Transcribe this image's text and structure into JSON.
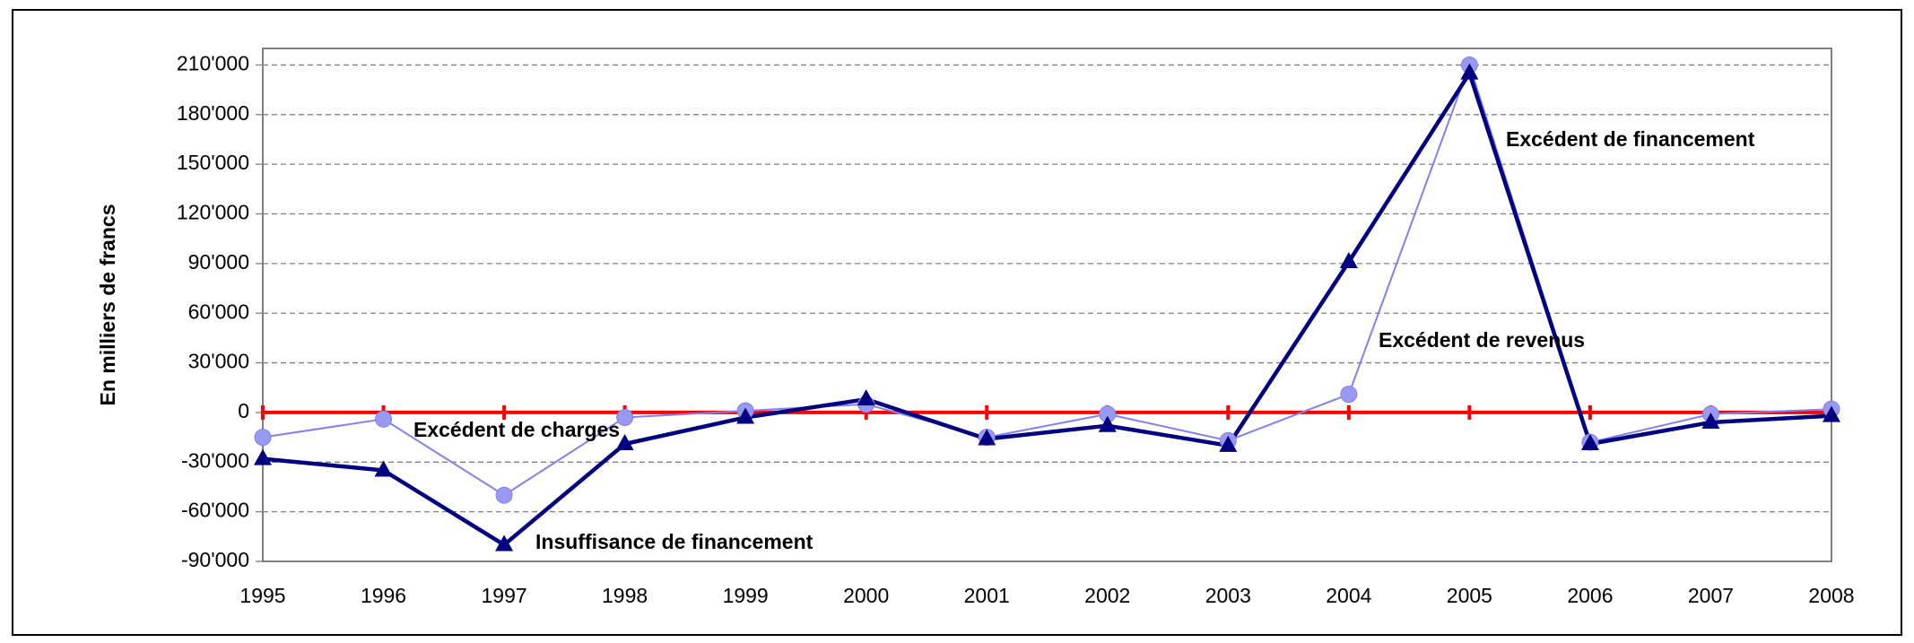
{
  "chart_data": {
    "type": "line",
    "y_label": "En  milliers  de francs",
    "categories": [
      "1995",
      "1996",
      "1997",
      "1998",
      "1999",
      "2000",
      "2001",
      "2002",
      "2003",
      "2004",
      "2005",
      "2006",
      "2007",
      "2008"
    ],
    "series": [
      {
        "color": "#8080ee",
        "marker": "circle",
        "values": [
          -15000,
          -4000,
          -50000,
          -3000,
          1000,
          5000,
          -15000,
          -1000,
          -17000,
          11000,
          210000,
          -18000,
          -1000,
          2000
        ]
      },
      {
        "color": "#000080",
        "marker": "triangle",
        "values": [
          -28000,
          -35000,
          -80000,
          -19000,
          -3000,
          8000,
          -16000,
          -8000,
          -20000,
          91000,
          205000,
          -19000,
          -6000,
          -2000
        ]
      }
    ],
    "ylim": [
      -90000,
      220000
    ],
    "yticks": [
      {
        "value": -90000,
        "label": "-90'000"
      },
      {
        "value": -60000,
        "label": "-60'000"
      },
      {
        "value": -30000,
        "label": "-30'000"
      },
      0,
      {
        "value": 30000,
        "label": "30'000"
      },
      {
        "value": 60000,
        "label": "60'000"
      },
      {
        "value": 90000,
        "label": "90'000"
      },
      {
        "value": 120000,
        "label": "120'000"
      },
      {
        "value": 150000,
        "label": "150'000"
      },
      {
        "value": 180000,
        "label": "180'000"
      },
      {
        "value": 210000,
        "label": "210'000"
      }
    ],
    "grid": true,
    "annotations": [
      "Excédent de financement",
      "Excédent de revenus",
      "Excédent de charges",
      "Insuffisance de financement"
    ]
  }
}
